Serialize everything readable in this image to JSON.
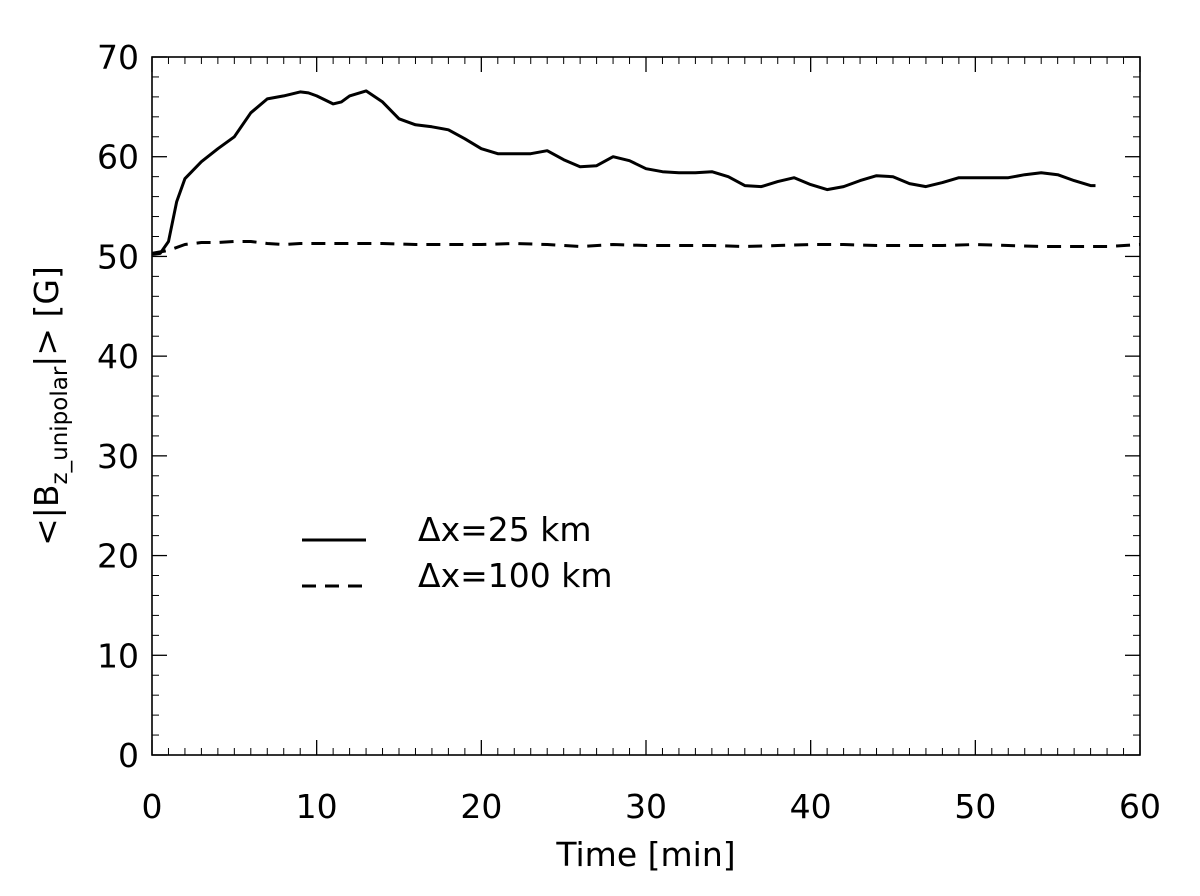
{
  "chart_data": {
    "type": "line",
    "title": "",
    "xlabel": "Time [min]",
    "ylabel": {
      "prefix": "<|B",
      "subscript": "z_unipolar",
      "suffix": "|> [G]"
    },
    "xlim": [
      0,
      60
    ],
    "ylim": [
      0,
      70
    ],
    "x_major_ticks": [
      0,
      10,
      20,
      30,
      40,
      50,
      60
    ],
    "x_tick_labels": [
      "0",
      "10",
      "20",
      "30",
      "40",
      "50",
      "60"
    ],
    "x_minor_step": 1,
    "y_major_ticks": [
      0,
      10,
      20,
      30,
      40,
      50,
      60,
      70
    ],
    "y_tick_labels": [
      "0",
      "10",
      "20",
      "30",
      "40",
      "50",
      "60",
      "70"
    ],
    "y_minor_step": 2,
    "grid": false,
    "legend_position": "center-left",
    "series": [
      {
        "name": "Δx=25 km",
        "style": "solid",
        "color": "#000000",
        "x": [
          0,
          0.5,
          1,
          1.5,
          2,
          3,
          4,
          5,
          6,
          7,
          8,
          9,
          9.5,
          10,
          11,
          11.5,
          12,
          13,
          14,
          15,
          16,
          17,
          18,
          19,
          20,
          21,
          22,
          23,
          24,
          25,
          26,
          27,
          28,
          29,
          30,
          31,
          32,
          33,
          34,
          35,
          36,
          37,
          38,
          39,
          40,
          41,
          42,
          43,
          44,
          45,
          46,
          47,
          48,
          49,
          50,
          51,
          52,
          53,
          54,
          55,
          56,
          57,
          57.3
        ],
        "y": [
          50.2,
          50.3,
          51.5,
          55.5,
          57.8,
          59.5,
          60.8,
          62,
          64.4,
          65.8,
          66.1,
          66.5,
          66.4,
          66.1,
          65.3,
          65.5,
          66.1,
          66.6,
          65.5,
          63.8,
          63.2,
          63.0,
          62.7,
          61.8,
          60.8,
          60.3,
          60.3,
          60.3,
          60.6,
          59.7,
          59.0,
          59.1,
          60.0,
          59.6,
          58.8,
          58.5,
          58.4,
          58.4,
          58.5,
          58.0,
          57.1,
          57.0,
          57.5,
          57.9,
          57.2,
          56.7,
          57.0,
          57.6,
          58.1,
          58.0,
          57.3,
          57.0,
          57.4,
          57.9,
          57.9,
          57.9,
          57.9,
          58.2,
          58.4,
          58.2,
          57.6,
          57.1,
          57.1
        ]
      },
      {
        "name": "Δx=100 km",
        "style": "dashed",
        "color": "#000000",
        "x": [
          0,
          1,
          2,
          3,
          4,
          5,
          6,
          7,
          8,
          9,
          10,
          12,
          14,
          16,
          18,
          20,
          22,
          24,
          26,
          28,
          30,
          32,
          34,
          36,
          38,
          40,
          42,
          44,
          46,
          48,
          50,
          52,
          54,
          56,
          58,
          60
        ],
        "y": [
          50.3,
          50.6,
          51.2,
          51.4,
          51.4,
          51.5,
          51.5,
          51.3,
          51.2,
          51.3,
          51.3,
          51.3,
          51.3,
          51.2,
          51.2,
          51.2,
          51.3,
          51.2,
          51.0,
          51.2,
          51.1,
          51.1,
          51.1,
          51.0,
          51.1,
          51.2,
          51.2,
          51.1,
          51.1,
          51.1,
          51.2,
          51.1,
          51.0,
          51.0,
          51.0,
          51.2
        ]
      }
    ]
  }
}
